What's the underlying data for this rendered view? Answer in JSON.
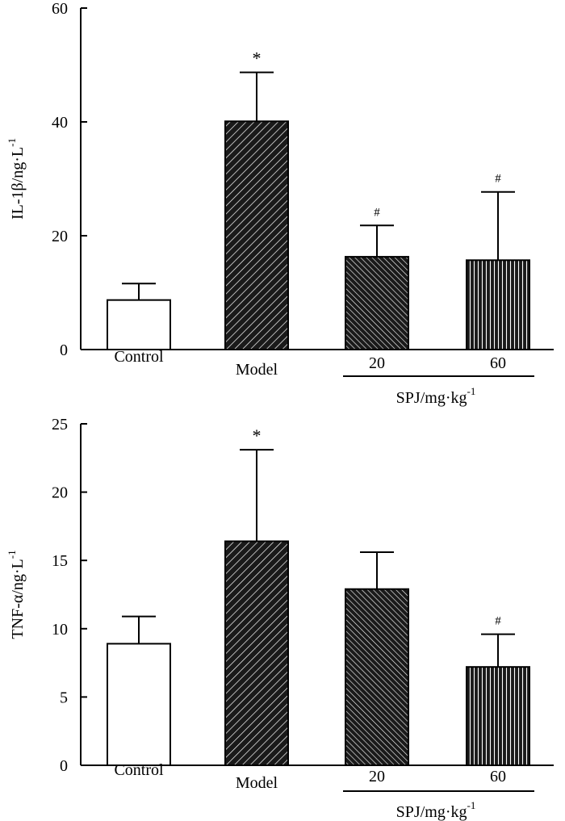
{
  "chart_data": [
    {
      "type": "bar",
      "ylabel": "IL-1β/ng·L",
      "ylabel_sup": "-1",
      "ylim": [
        0,
        60
      ],
      "yticks": [
        "0",
        "20",
        "40",
        "60"
      ],
      "ytick_values": [
        0,
        20,
        40,
        60
      ],
      "categories": [
        "Control",
        "Model",
        "20",
        "60"
      ],
      "group_label": "SPJ/mg·kg",
      "group_label_sup": "-1",
      "values": [
        8.7,
        40.1,
        16.3,
        15.7
      ],
      "errors": [
        2.9,
        8.6,
        5.5,
        12.0
      ],
      "significance": [
        "",
        "*",
        "#",
        "#"
      ],
      "fills": [
        "white",
        "diagonal-wide",
        "diagonal-dense",
        "vertical"
      ]
    },
    {
      "type": "bar",
      "ylabel": "TNF-α/ng·L",
      "ylabel_sup": "-1",
      "ylim": [
        0,
        25
      ],
      "yticks": [
        "0",
        "5",
        "10",
        "15",
        "20",
        "25"
      ],
      "ytick_values": [
        0,
        5,
        10,
        15,
        20,
        25
      ],
      "categories": [
        "Control",
        "Model",
        "20",
        "60"
      ],
      "group_label": "SPJ/mg·kg",
      "group_label_sup": "-1",
      "values": [
        8.9,
        16.4,
        12.9,
        7.2
      ],
      "errors": [
        2.0,
        6.7,
        2.7,
        2.4
      ],
      "significance": [
        "",
        "*",
        "",
        "#"
      ],
      "fills": [
        "white",
        "diagonal-wide",
        "diagonal-dense",
        "vertical"
      ]
    }
  ]
}
